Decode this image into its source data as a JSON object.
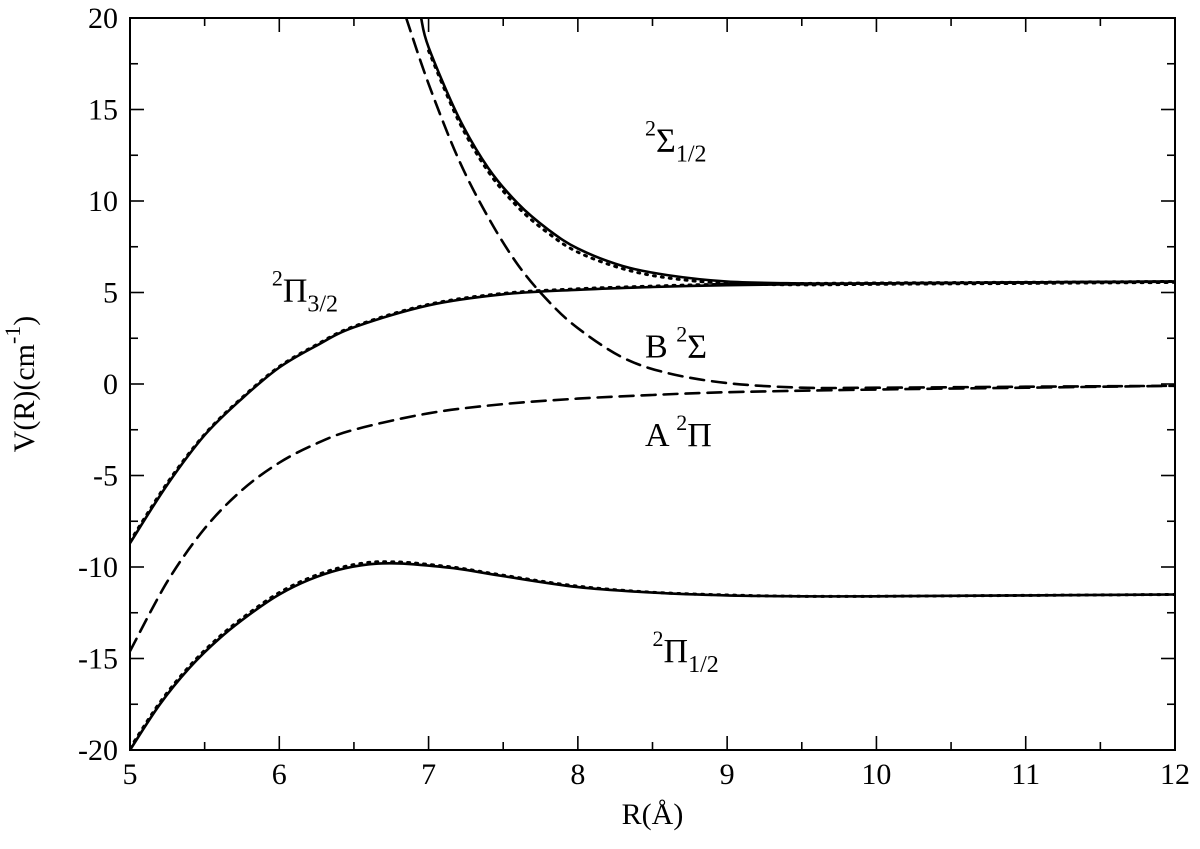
{
  "chart_data": {
    "type": "line",
    "xlabel": "R(Å)",
    "ylabel": {
      "main": "V(R)(cm",
      "sup": "-1",
      "close": ")"
    },
    "xlim": [
      5,
      12
    ],
    "ylim": [
      -20,
      20
    ],
    "x_ticks": [
      5,
      6,
      7,
      8,
      9,
      10,
      11,
      12
    ],
    "y_ticks": [
      -20,
      -15,
      -10,
      -5,
      0,
      5,
      10,
      15,
      20
    ],
    "x_minor_step": 0.5,
    "y_minor_step": 2.5,
    "grid": false,
    "legend": "none",
    "series": [
      {
        "style": "solid",
        "x": [
          6.95,
          7.0,
          7.2,
          7.4,
          7.6,
          7.8,
          8.0,
          8.3,
          8.6,
          9.0,
          9.5,
          10.0,
          11.0,
          12.0
        ],
        "y": [
          20.0,
          18.4,
          14.6,
          11.8,
          9.85,
          8.45,
          7.4,
          6.45,
          5.95,
          5.6,
          5.5,
          5.5,
          5.55,
          5.6
        ]
      },
      {
        "style": "solid",
        "x": [
          5.0,
          5.25,
          5.5,
          5.75,
          6.0,
          6.25,
          6.5,
          7.0,
          7.5,
          8.0,
          8.5,
          9.0,
          10.0,
          11.0,
          12.0
        ],
        "y": [
          -8.7,
          -5.5,
          -2.8,
          -0.8,
          0.9,
          2.1,
          3.1,
          4.3,
          4.9,
          5.15,
          5.3,
          5.4,
          5.5,
          5.55,
          5.6
        ]
      },
      {
        "style": "dashed",
        "x": [
          6.85,
          7.0,
          7.2,
          7.4,
          7.6,
          7.8,
          8.0,
          8.3,
          8.6,
          9.0,
          9.5,
          10.0,
          11.0,
          12.0
        ],
        "y": [
          20.0,
          16.4,
          12.3,
          9.1,
          6.5,
          4.55,
          3.05,
          1.45,
          0.6,
          0.05,
          -0.2,
          -0.2,
          -0.15,
          -0.1
        ]
      },
      {
        "style": "dashed",
        "x": [
          5.0,
          5.25,
          5.5,
          5.75,
          6.0,
          6.25,
          6.5,
          7.0,
          7.5,
          8.0,
          8.5,
          9.0,
          10.0,
          11.0,
          12.0
        ],
        "y": [
          -14.6,
          -10.8,
          -7.9,
          -5.8,
          -4.3,
          -3.25,
          -2.5,
          -1.6,
          -1.1,
          -0.8,
          -0.6,
          -0.45,
          -0.3,
          -0.2,
          -0.1
        ]
      },
      {
        "style": "solid",
        "x": [
          5.0,
          5.2,
          5.4,
          5.6,
          5.8,
          6.0,
          6.2,
          6.4,
          6.6,
          6.75,
          6.9,
          7.2,
          7.5,
          8.0,
          8.5,
          9.0,
          9.5,
          10.0,
          11.0,
          12.0
        ],
        "y": [
          -20.0,
          -17.5,
          -15.5,
          -13.9,
          -12.6,
          -11.5,
          -10.7,
          -10.15,
          -9.85,
          -9.8,
          -9.85,
          -10.1,
          -10.5,
          -11.1,
          -11.4,
          -11.55,
          -11.6,
          -11.6,
          -11.55,
          -11.5
        ]
      },
      {
        "style": "dotted",
        "x": [
          7.0,
          7.2,
          7.4,
          7.6,
          7.8,
          8.0,
          8.3,
          8.6,
          9.0,
          9.5,
          10.0,
          11.0,
          12.0
        ],
        "y": [
          18.2,
          14.4,
          11.6,
          9.65,
          8.25,
          7.2,
          6.3,
          5.8,
          5.5,
          5.42,
          5.45,
          5.5,
          5.55
        ]
      },
      {
        "style": "dotted",
        "x": [
          5.0,
          5.25,
          5.5,
          5.75,
          6.0,
          6.25,
          6.5,
          7.0,
          7.5,
          8.0,
          8.5,
          9.0,
          10.0,
          11.0,
          12.0
        ],
        "y": [
          -8.6,
          -5.4,
          -2.75,
          -0.75,
          0.95,
          2.15,
          3.15,
          4.35,
          4.95,
          5.2,
          5.35,
          5.45,
          5.52,
          5.56,
          5.6
        ]
      },
      {
        "style": "dotted",
        "x": [
          5.0,
          5.2,
          5.4,
          5.6,
          5.8,
          6.0,
          6.2,
          6.4,
          6.6,
          6.75,
          6.9,
          7.2,
          7.5,
          8.0,
          8.5,
          9.0,
          9.5,
          10.0,
          11.0,
          12.0
        ],
        "y": [
          -19.9,
          -17.4,
          -15.4,
          -13.8,
          -12.5,
          -11.4,
          -10.6,
          -10.05,
          -9.75,
          -9.72,
          -9.78,
          -10.05,
          -10.45,
          -11.05,
          -11.38,
          -11.53,
          -11.6,
          -11.6,
          -11.55,
          -11.5
        ]
      }
    ],
    "annotations": [
      {
        "id": "sigma12",
        "pre_sup": "2",
        "main": "Σ",
        "sub": "1/2",
        "x": 8.45,
        "y": 12.7
      },
      {
        "id": "pi32",
        "pre_sup": "2",
        "main": "Π",
        "sub": "3/2",
        "x": 5.95,
        "y": 4.5
      },
      {
        "id": "bsigma",
        "main": "B ",
        "sup": "2",
        "main2": "Σ",
        "x": 8.45,
        "y": 1.45
      },
      {
        "id": "api",
        "main": "A ",
        "sup": "2",
        "main2": "Π",
        "x": 8.45,
        "y": -3.4
      },
      {
        "id": "pi12",
        "pre_sup": "2",
        "main": "Π",
        "sub": "1/2",
        "x": 8.5,
        "y": -15.2
      }
    ]
  }
}
